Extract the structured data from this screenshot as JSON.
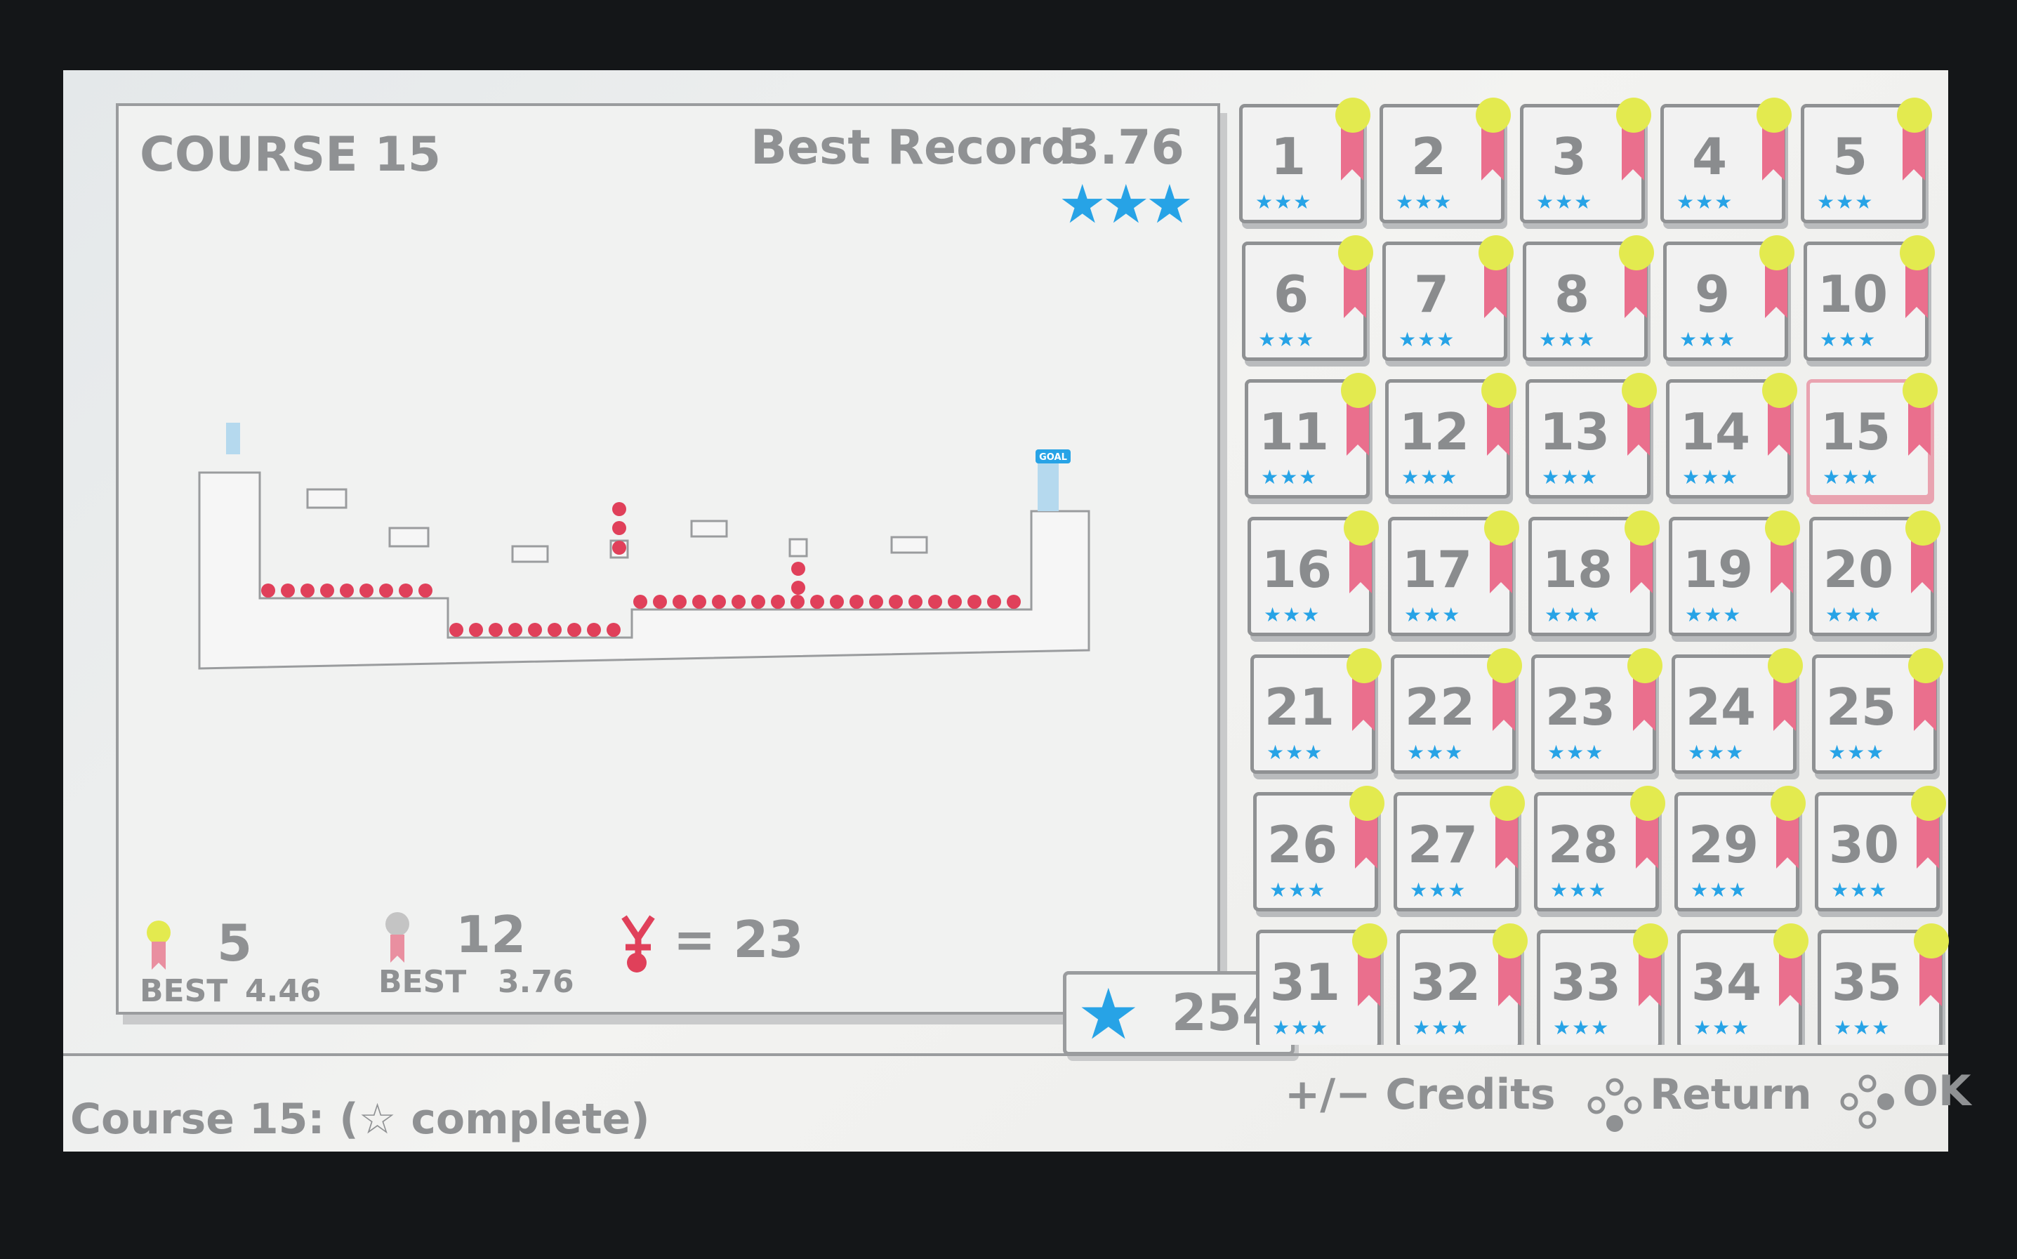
{
  "course": {
    "title": "COURSE 15",
    "best_record_label": "Best Record",
    "best_record": "3.76",
    "stars": "★★★",
    "goal_label": "GOAL"
  },
  "stats": {
    "gold_count": "5",
    "gold_best_label": "BEST",
    "gold_best": "4.46",
    "silver_count": "12",
    "silver_best_label": "BEST",
    "silver_best": "3.76",
    "deaths": "= 23",
    "total_stars": "254"
  },
  "colors": {
    "star": "#27a3e6",
    "gold": "#e3ea4f",
    "ribbon": "#ea6f8d",
    "fire": "#e0405a"
  },
  "courses": [
    1,
    2,
    3,
    4,
    5,
    6,
    7,
    8,
    9,
    10,
    11,
    12,
    13,
    14,
    15,
    16,
    17,
    18,
    19,
    20,
    21,
    22,
    23,
    24,
    25,
    26,
    27,
    28,
    29,
    30,
    31,
    32,
    33,
    34,
    35
  ],
  "course_stars": 3,
  "selected_course": 15,
  "footer": {
    "status": "Course 15: (☆ complete)",
    "credits": "+/− Credits",
    "return": "Return",
    "ok": "OK"
  }
}
